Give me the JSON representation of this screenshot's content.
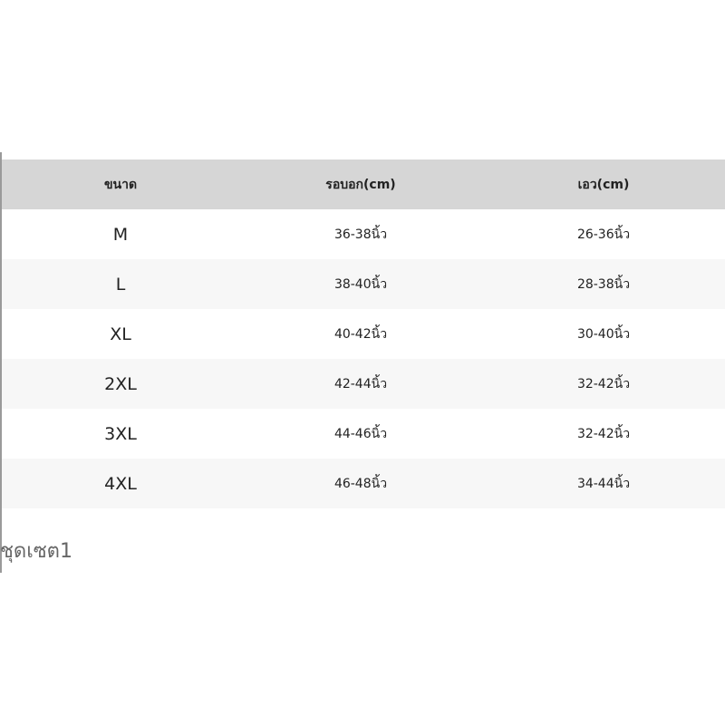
{
  "table": {
    "headers": [
      "ขนาด",
      "รอบอก(cm)",
      "เอว(cm)"
    ],
    "rows": [
      [
        "M",
        "36-38นิ้ว",
        "26-36นิ้ว"
      ],
      [
        "L",
        "38-40นิ้ว",
        "28-38นิ้ว"
      ],
      [
        "XL",
        "40-42นิ้ว",
        "30-40นิ้ว"
      ],
      [
        "2XL",
        "42-44นิ้ว",
        "32-42นิ้ว"
      ],
      [
        "3XL",
        "44-46นิ้ว",
        "32-42นิ้ว"
      ],
      [
        "4XL",
        "46-48นิ้ว",
        "34-44นิ้ว"
      ]
    ]
  },
  "caption": "ชุดเซต1"
}
